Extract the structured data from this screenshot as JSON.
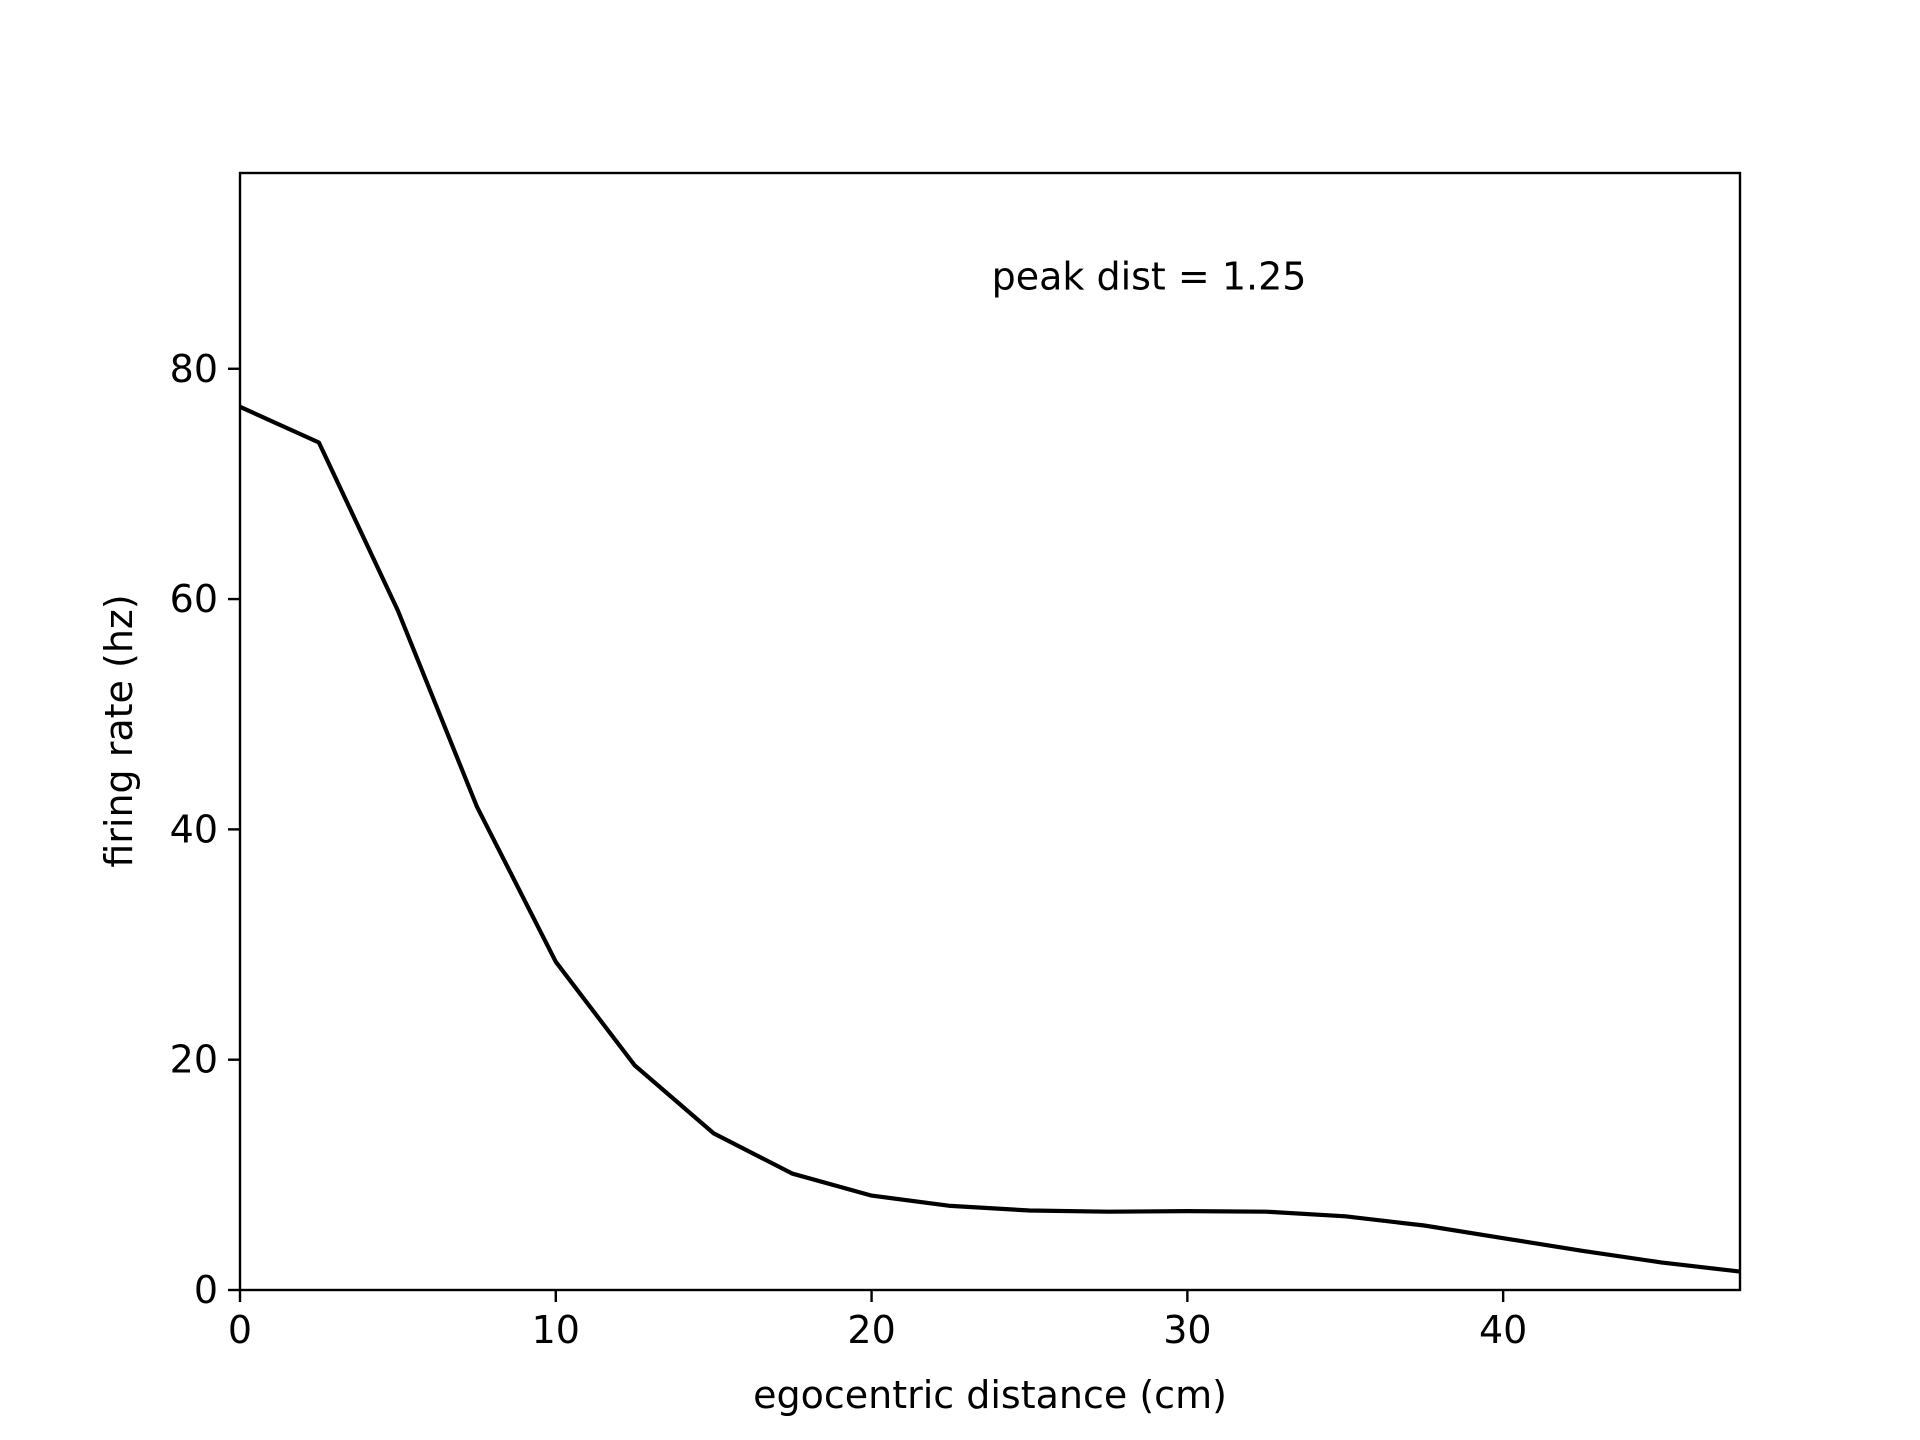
{
  "chart_data": {
    "type": "line",
    "title": "",
    "xlabel": "egocentric distance (cm)",
    "ylabel": "firing rate (hz)",
    "xlim": [
      0,
      47.5
    ],
    "ylim": [
      0,
      97
    ],
    "xticks": [
      0,
      10,
      20,
      30,
      40
    ],
    "yticks": [
      0,
      20,
      40,
      60,
      80
    ],
    "xtick_labels": [
      "0",
      "10",
      "20",
      "30",
      "40"
    ],
    "ytick_labels": [
      "0",
      "20",
      "40",
      "60",
      "80"
    ],
    "grid": false,
    "annotation": {
      "text": "peak dist = 1.25",
      "x": 23.8,
      "y": 88
    },
    "series": [
      {
        "color": "#000000",
        "x": [
          0,
          2.5,
          5,
          7.5,
          10,
          12.5,
          15,
          17.5,
          20,
          22.5,
          25,
          27.5,
          30,
          32.5,
          35,
          37.5,
          40,
          42.5,
          45,
          47.5
        ],
        "y": [
          76.7,
          73.6,
          59.0,
          42.0,
          28.5,
          19.5,
          13.6,
          10.1,
          8.2,
          7.3,
          6.9,
          6.8,
          6.85,
          6.8,
          6.4,
          5.6,
          4.5,
          3.4,
          2.4,
          1.6
        ]
      }
    ]
  }
}
